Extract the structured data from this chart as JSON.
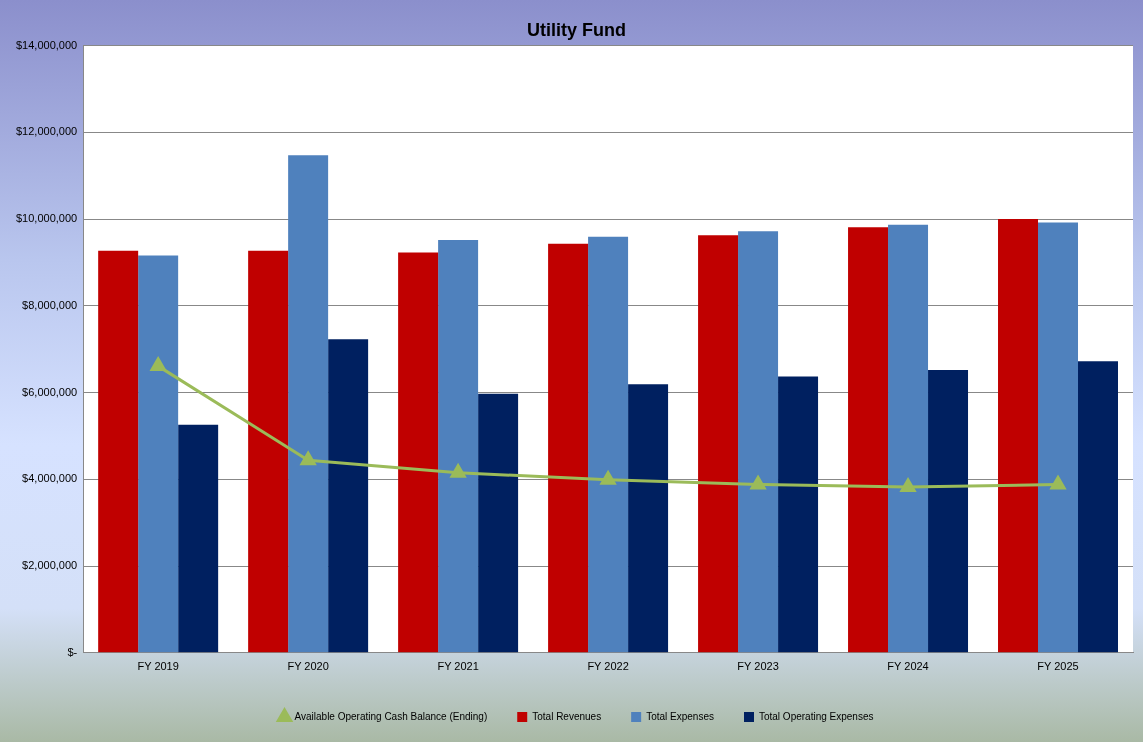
{
  "chart_data": {
    "type": "bar",
    "title": "Utility Fund",
    "categories": [
      "FY 2019",
      "FY 2020",
      "FY 2021",
      "FY 2022",
      "FY 2023",
      "FY 2024",
      "FY 2025"
    ],
    "series": [
      {
        "name": "Total Revenues",
        "color": "#c00000",
        "values": [
          9270000,
          9270000,
          9230000,
          9430000,
          9630000,
          9810000,
          10000000
        ]
      },
      {
        "name": "Total Expenses",
        "color": "#4f81bd",
        "values": [
          9160000,
          11470000,
          9520000,
          9590000,
          9720000,
          9870000,
          9920000
        ]
      },
      {
        "name": "Total Operating Expenses",
        "color": "#002060",
        "values": [
          5260000,
          7230000,
          5970000,
          6190000,
          6370000,
          6520000,
          6720000
        ]
      },
      {
        "name": "Available Operating Cash Balance (Ending)",
        "type": "line",
        "color": "#9bbb59",
        "marker": "triangle",
        "values": [
          6610000,
          4440000,
          4150000,
          3990000,
          3880000,
          3820000,
          3880000
        ]
      }
    ],
    "ylim": [
      0,
      14000000
    ],
    "yticks": [
      {
        "value": 0,
        "label": "$-"
      },
      {
        "value": 2000000,
        "label": "$2,000,000"
      },
      {
        "value": 4000000,
        "label": "$4,000,000"
      },
      {
        "value": 6000000,
        "label": "$6,000,000"
      },
      {
        "value": 8000000,
        "label": "$8,000,000"
      },
      {
        "value": 10000000,
        "label": "$10,000,000"
      },
      {
        "value": 12000000,
        "label": "$12,000,000"
      },
      {
        "value": 14000000,
        "label": "$14,000,000"
      }
    ],
    "grid": "y",
    "legend": "bottom"
  }
}
